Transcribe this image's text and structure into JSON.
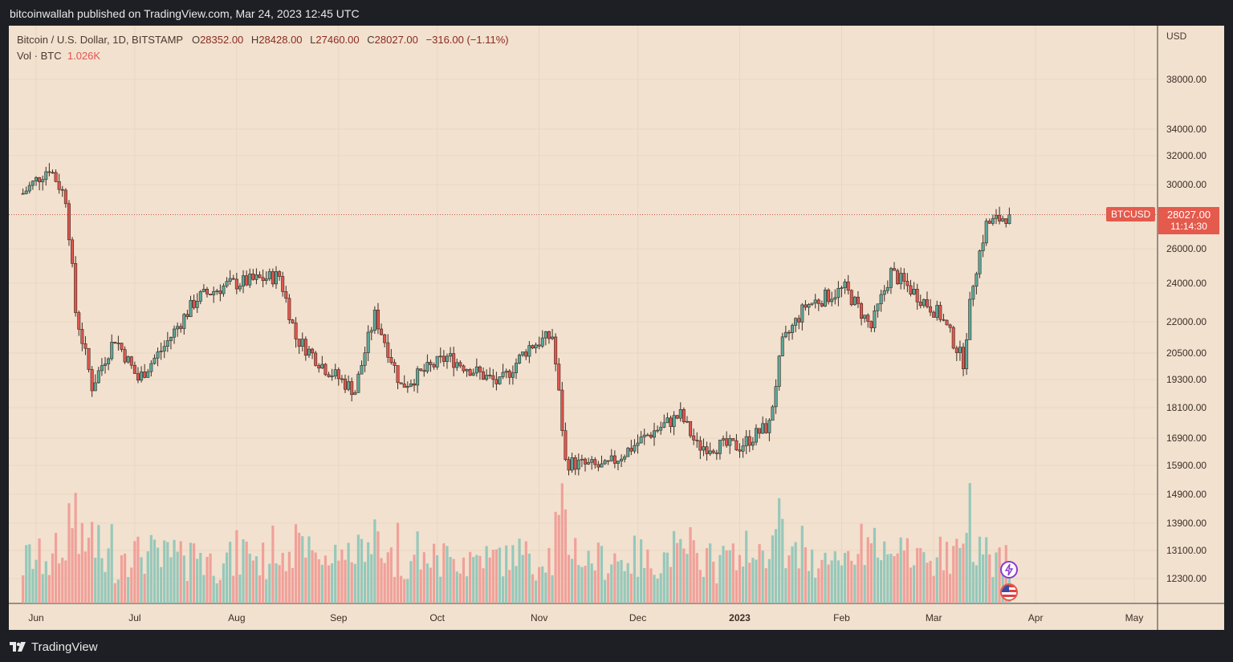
{
  "header": {
    "published": "bitcoinwallah published on TradingView.com, Mar 24, 2023 12:45 UTC"
  },
  "legend": {
    "title": "Bitcoin / U.S. Dollar, 1D, BITSTAMP",
    "o_label": "O",
    "o_val": "28352.00",
    "h_label": "H",
    "h_val": "28428.00",
    "l_label": "L",
    "l_val": "27460.00",
    "c_label": "C",
    "c_val": "28027.00",
    "change": "−316.00 (−1.11%)",
    "vol_label": "Vol · BTC",
    "vol_val": "1.026K"
  },
  "price_tag": {
    "symbol": "BTCUSD",
    "price": "28027.00",
    "countdown": "11:14:30"
  },
  "axis_currency": "USD",
  "footer": {
    "brand": "TradingView"
  },
  "colors": {
    "up": "#5ba89a",
    "down": "#e0574e",
    "up_vol": "#8cc5b7",
    "down_vol": "#f09a93",
    "bg": "#f2e1cf"
  },
  "chart_data": {
    "type": "candlestick",
    "symbol": "BTCUSD",
    "interval": "1D",
    "y_ticks": [
      38000,
      34000,
      32000,
      30000,
      26000,
      24000,
      22000,
      20500,
      19300,
      18100,
      16900,
      15900,
      14900,
      13900,
      13100,
      12300
    ],
    "y_tick_labels": [
      "38000.00",
      "34000.00",
      "32000.00",
      "30000.00",
      "26000.00",
      "24000.00",
      "22000.00",
      "20500.00",
      "19300.00",
      "18100.00",
      "16900.00",
      "15900.00",
      "14900.00",
      "13900.00",
      "13100.00",
      "12300.00"
    ],
    "y_scale": "log",
    "x_ticks": [
      "Jun",
      "Jul",
      "Aug",
      "Sep",
      "Oct",
      "Nov",
      "Dec",
      "2023",
      "Feb",
      "Mar",
      "Apr",
      "May"
    ],
    "x_tick_dates": [
      "2022-06-01",
      "2022-07-01",
      "2022-08-01",
      "2022-09-01",
      "2022-10-01",
      "2022-11-01",
      "2022-12-01",
      "2023-01-01",
      "2023-02-01",
      "2023-03-01",
      "2023-04-01",
      "2023-05-01"
    ],
    "last_price": 28027,
    "series": [
      {
        "date": "2022-05-28",
        "close": 29400
      },
      {
        "date": "2022-06-05",
        "close": 31200
      },
      {
        "date": "2022-06-10",
        "close": 29100
      },
      {
        "date": "2022-06-13",
        "close": 22500
      },
      {
        "date": "2022-06-18",
        "close": 19000
      },
      {
        "date": "2022-06-25",
        "close": 21200
      },
      {
        "date": "2022-07-02",
        "close": 19300
      },
      {
        "date": "2022-07-10",
        "close": 20800
      },
      {
        "date": "2022-07-20",
        "close": 23200
      },
      {
        "date": "2022-07-29",
        "close": 23900
      },
      {
        "date": "2022-08-14",
        "close": 24400
      },
      {
        "date": "2022-08-19",
        "close": 21200
      },
      {
        "date": "2022-08-28",
        "close": 19800
      },
      {
        "date": "2022-09-06",
        "close": 18800
      },
      {
        "date": "2022-09-12",
        "close": 22300
      },
      {
        "date": "2022-09-20",
        "close": 19000
      },
      {
        "date": "2022-10-04",
        "close": 20300
      },
      {
        "date": "2022-10-20",
        "close": 19100
      },
      {
        "date": "2022-10-29",
        "close": 20800
      },
      {
        "date": "2022-11-05",
        "close": 21300
      },
      {
        "date": "2022-11-09",
        "close": 16000
      },
      {
        "date": "2022-11-21",
        "close": 15800
      },
      {
        "date": "2022-12-05",
        "close": 17100
      },
      {
        "date": "2022-12-14",
        "close": 17800
      },
      {
        "date": "2022-12-19",
        "close": 16600
      },
      {
        "date": "2023-01-01",
        "close": 16600
      },
      {
        "date": "2023-01-10",
        "close": 17400
      },
      {
        "date": "2023-01-14",
        "close": 20900
      },
      {
        "date": "2023-01-21",
        "close": 22800
      },
      {
        "date": "2023-02-02",
        "close": 23700
      },
      {
        "date": "2023-02-10",
        "close": 21700
      },
      {
        "date": "2023-02-16",
        "close": 24600
      },
      {
        "date": "2023-02-25",
        "close": 23200
      },
      {
        "date": "2023-03-03",
        "close": 22300
      },
      {
        "date": "2023-03-10",
        "close": 20100
      },
      {
        "date": "2023-03-13",
        "close": 24100
      },
      {
        "date": "2023-03-17",
        "close": 27400
      },
      {
        "date": "2023-03-24",
        "close": 28027
      }
    ]
  }
}
